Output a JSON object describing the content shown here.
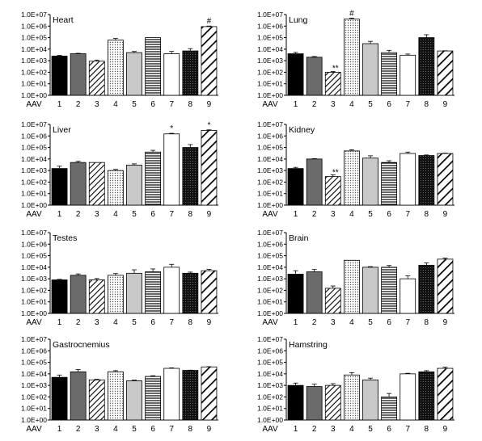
{
  "chart_data": [
    {
      "type": "bar",
      "title": "Heart",
      "xlabel": "AAV",
      "categories": [
        "1",
        "2",
        "3",
        "4",
        "5",
        "6",
        "7",
        "8",
        "9"
      ],
      "values": [
        2500,
        4000,
        900,
        60000,
        5000,
        100000,
        4000,
        7000,
        900000
      ],
      "errors": [
        0.06,
        0.04,
        0.1,
        0.15,
        0.1,
        0.0,
        0.2,
        0.2,
        0.05
      ],
      "annotations": [
        "",
        "",
        "",
        "",
        "",
        "",
        "",
        "",
        "#"
      ],
      "ylim": [
        1,
        10000000
      ],
      "yscale": "log",
      "yticks": [
        "1.0E+00",
        "1.0E+01",
        "1.0E+02",
        "1.0E+03",
        "1.0E+04",
        "1.0E+05",
        "1.0E+06",
        "1.0E+07"
      ]
    },
    {
      "type": "bar",
      "title": "Lung",
      "xlabel": "AAV",
      "categories": [
        "1",
        "2",
        "3",
        "4",
        "5",
        "6",
        "7",
        "8",
        "9"
      ],
      "values": [
        4000,
        2000,
        100,
        4000000,
        30000,
        5000,
        3000,
        100000,
        7000
      ],
      "errors": [
        0.12,
        0.06,
        0.06,
        0.08,
        0.2,
        0.2,
        0.1,
        0.25,
        0.02
      ],
      "annotations": [
        "",
        "",
        "**",
        "#",
        "",
        "",
        "",
        "",
        ""
      ],
      "ylim": [
        1,
        10000000
      ],
      "yscale": "log",
      "yticks": [
        "1.0E+00",
        "1.0E+01",
        "1.0E+02",
        "1.0E+03",
        "1.0E+04",
        "1.0E+05",
        "1.0E+06",
        "1.0E+07"
      ]
    },
    {
      "type": "bar",
      "title": "Liver",
      "xlabel": "AAV",
      "categories": [
        "1",
        "2",
        "3",
        "4",
        "5",
        "6",
        "7",
        "8",
        "9"
      ],
      "values": [
        1500,
        5000,
        5000,
        1000,
        3000,
        40000,
        1500000,
        100000,
        3000000
      ],
      "errors": [
        0.2,
        0.1,
        0.0,
        0.1,
        0.1,
        0.15,
        0.05,
        0.25,
        0.05
      ],
      "annotations": [
        "",
        "",
        "",
        "",
        "",
        "",
        "*",
        "",
        "*"
      ],
      "ylim": [
        1,
        10000000
      ],
      "yscale": "log",
      "yticks": [
        "1.0E+00",
        "1.0E+01",
        "1.0E+02",
        "1.0E+03",
        "1.0E+04",
        "1.0E+05",
        "1.0E+06",
        "1.0E+07"
      ]
    },
    {
      "type": "bar",
      "title": "Kidney",
      "xlabel": "AAV",
      "categories": [
        "1",
        "2",
        "3",
        "4",
        "5",
        "6",
        "7",
        "8",
        "9"
      ],
      "values": [
        1500,
        10000,
        300,
        50000,
        12000,
        5000,
        30000,
        20000,
        30000
      ],
      "errors": [
        0.1,
        0.03,
        0.15,
        0.1,
        0.2,
        0.15,
        0.12,
        0.05,
        0.03
      ],
      "annotations": [
        "",
        "",
        "**",
        "",
        "",
        "",
        "",
        "",
        ""
      ],
      "ylim": [
        1,
        10000000
      ],
      "yscale": "log",
      "yticks": [
        "1.0E+00",
        "1.0E+01",
        "1.0E+02",
        "1.0E+03",
        "1.0E+04",
        "1.0E+05",
        "1.0E+06",
        "1.0E+07"
      ]
    },
    {
      "type": "bar",
      "title": "Testes",
      "xlabel": "AAV",
      "categories": [
        "1",
        "2",
        "3",
        "4",
        "5",
        "6",
        "7",
        "8",
        "9"
      ],
      "values": [
        800,
        2000,
        800,
        2000,
        3000,
        4000,
        10000,
        3000,
        5000
      ],
      "errors": [
        0.05,
        0.12,
        0.12,
        0.15,
        0.3,
        0.25,
        0.25,
        0.1,
        0.12
      ],
      "annotations": [
        "",
        "",
        "",
        "",
        "",
        "",
        "",
        "",
        ""
      ],
      "ylim": [
        1,
        10000000
      ],
      "yscale": "log",
      "yticks": [
        "1.0E+00",
        "1.0E+01",
        "1.0E+02",
        "1.0E+03",
        "1.0E+04",
        "1.0E+05",
        "1.0E+06",
        "1.0E+07"
      ]
    },
    {
      "type": "bar",
      "title": "Brain",
      "xlabel": "AAV",
      "categories": [
        "1",
        "2",
        "3",
        "4",
        "5",
        "6",
        "7",
        "8",
        "9"
      ],
      "values": [
        2500,
        4000,
        150,
        40000,
        10000,
        10000,
        1000,
        15000,
        50000
      ],
      "errors": [
        0.3,
        0.2,
        0.2,
        0.0,
        0.05,
        0.15,
        0.25,
        0.2,
        0.1
      ],
      "annotations": [
        "",
        "",
        "",
        "",
        "",
        "",
        "",
        "",
        ""
      ],
      "ylim": [
        1,
        10000000
      ],
      "yscale": "log",
      "yticks": [
        "1.0E+00",
        "1.0E+01",
        "1.0E+02",
        "1.0E+03",
        "1.0E+04",
        "1.0E+05",
        "1.0E+06",
        "1.0E+07"
      ]
    },
    {
      "type": "bar",
      "title": "Gastrocnemius",
      "xlabel": "AAV",
      "categories": [
        "1",
        "2",
        "3",
        "4",
        "5",
        "6",
        "7",
        "8",
        "9"
      ],
      "values": [
        5000,
        15000,
        3000,
        15000,
        2500,
        6000,
        30000,
        20000,
        40000
      ],
      "errors": [
        0.2,
        0.2,
        0.05,
        0.1,
        0.06,
        0.06,
        0.04,
        0.02,
        0.02
      ],
      "annotations": [
        "",
        "",
        "",
        "",
        "",
        "",
        "",
        "",
        ""
      ],
      "ylim": [
        1,
        10000000
      ],
      "yscale": "log",
      "yticks": [
        "1.0E+00",
        "1.0E+01",
        "1.0E+02",
        "1.0E+03",
        "1.0E+04",
        "1.0E+05",
        "1.0E+06",
        "1.0E+07"
      ]
    },
    {
      "type": "bar",
      "title": "Hamstring",
      "xlabel": "AAV",
      "categories": [
        "1",
        "2",
        "3",
        "4",
        "5",
        "6",
        "7",
        "8",
        "9"
      ],
      "values": [
        1000,
        800,
        1000,
        8000,
        3000,
        100,
        10000,
        15000,
        30000
      ],
      "errors": [
        0.2,
        0.2,
        0.15,
        0.2,
        0.15,
        0.3,
        0.05,
        0.1,
        0.1
      ],
      "annotations": [
        "",
        "",
        "",
        "",
        "",
        "",
        "",
        "",
        ""
      ],
      "ylim": [
        1,
        10000000
      ],
      "yscale": "log",
      "yticks": [
        "1.0E+00",
        "1.0E+01",
        "1.0E+02",
        "1.0E+03",
        "1.0E+04",
        "1.0E+05",
        "1.0E+06",
        "1.0E+07"
      ]
    }
  ]
}
